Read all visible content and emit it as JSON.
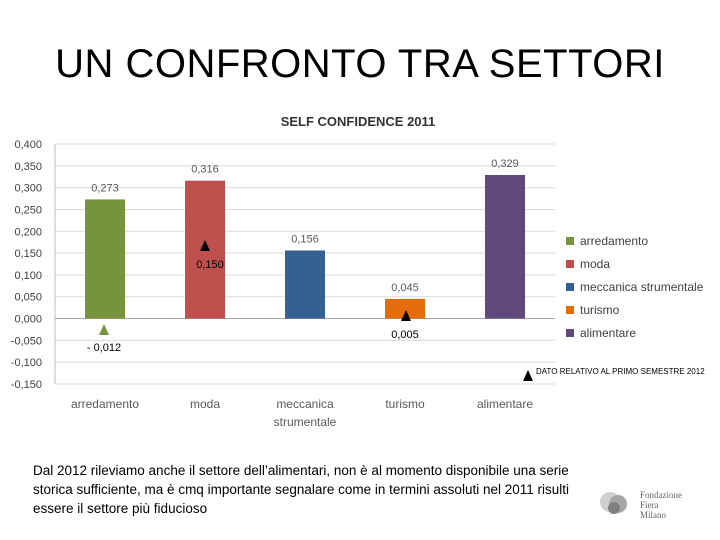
{
  "slide": {
    "title": "UN CONFRONTO TRA SETTORI",
    "caption": "Dal 2012 rileviamo anche il settore dell’alimentari, non è al momento disponibile una serie storica sufficiente, ma è cmq importante segnalare come in termini assoluti nel 2011 risulti essere il settore più fiducioso"
  },
  "logo": {
    "lines": [
      "Fondazione",
      "Fiera",
      "Milano"
    ]
  },
  "chart_data": {
    "type": "bar",
    "title": "SELF CONFIDENCE 2011",
    "categories": [
      "arredamento",
      "moda",
      "meccanica strumentale",
      "turismo",
      "alimentare"
    ],
    "category_lines": [
      [
        "arredamento"
      ],
      [
        "moda"
      ],
      [
        "meccanica",
        "strumentale"
      ],
      [
        "turismo"
      ],
      [
        "alimentare"
      ]
    ],
    "values": [
      0.273,
      0.316,
      0.156,
      0.045,
      0.329
    ],
    "value_labels": [
      "0,273",
      "0,316",
      "0,156",
      "0,045",
      "0,329"
    ],
    "colors": [
      "#77933c",
      "#c0504d",
      "#366092",
      "#e46c0a",
      "#604a7b"
    ],
    "ylim": [
      -0.15,
      0.4
    ],
    "yticks": [
      0.4,
      0.35,
      0.3,
      0.25,
      0.2,
      0.15,
      0.1,
      0.05,
      0.0,
      -0.05,
      -0.1,
      -0.15
    ],
    "ytick_labels": [
      "0,400",
      "0,350",
      "0,300",
      "0,250",
      "0,200",
      "0,150",
      "0,100",
      "0,050",
      "0,000",
      "-0,050",
      "-0,100",
      "-0,150"
    ],
    "grid": true,
    "legend": {
      "position": "right",
      "entries": [
        "arredamento",
        "moda",
        "meccanica strumentale",
        "turismo",
        "alimentare"
      ]
    },
    "annotations": [
      {
        "category": "arredamento",
        "label": "- 0,012",
        "marker_color": "#77933c",
        "value": -0.012
      },
      {
        "category": "moda",
        "label": "0,150",
        "marker_color": "#000000",
        "value": 0.15
      },
      {
        "category": "turismo",
        "label": "0,005",
        "marker_color": "#000000",
        "value": 0.005
      }
    ],
    "note": {
      "label": "DATO RELATIVO AL PRIMO SEMESTRE 2012",
      "marker_color": "#000000"
    }
  }
}
